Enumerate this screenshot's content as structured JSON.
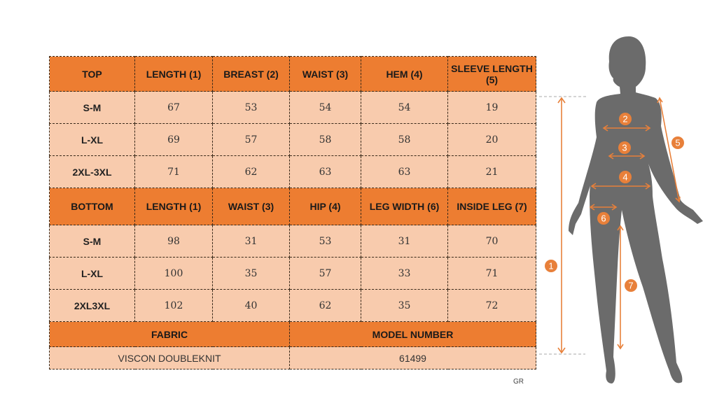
{
  "top": {
    "headers": [
      "TOP",
      "LENGTH (1)",
      "BREAST (2)",
      "WAIST (3)",
      "HEM (4)",
      "SLEEVE LENGTH (5)"
    ],
    "rows": [
      [
        "S-M",
        "67",
        "53",
        "54",
        "54",
        "19"
      ],
      [
        "L-XL",
        "69",
        "57",
        "58",
        "58",
        "20"
      ],
      [
        "2XL-3XL",
        "71",
        "62",
        "63",
        "63",
        "21"
      ]
    ]
  },
  "bottom": {
    "headers": [
      "BOTTOM",
      "LENGTH (1)",
      "WAIST (3)",
      "HIP (4)",
      "LEG WIDTH (6)",
      "INSIDE LEG (7)"
    ],
    "rows": [
      [
        "S-M",
        "98",
        "31",
        "53",
        "31",
        "70"
      ],
      [
        "L-XL",
        "100",
        "35",
        "57",
        "33",
        "71"
      ],
      [
        "2XL3XL",
        "102",
        "40",
        "62",
        "35",
        "72"
      ]
    ]
  },
  "footer": {
    "fabric_label": "FABRIC",
    "model_label": "MODEL NUMBER",
    "fabric_value": "VISCON DOUBLEKNIT",
    "model_value": "61499"
  },
  "figure": {
    "markers": [
      "1",
      "2",
      "3",
      "4",
      "5",
      "6",
      "7"
    ],
    "silhouette_color": "#6b6b6b",
    "accent_color": "#E8803A"
  },
  "watermark": "GR",
  "colors": {
    "header": "#ED7D31",
    "cell": "#F8CBAD"
  }
}
